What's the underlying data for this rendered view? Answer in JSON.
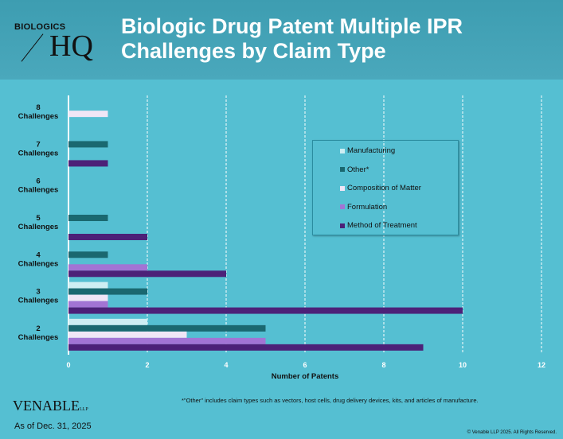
{
  "header": {
    "logo_small": "BIOLOGICS",
    "logo_big": "HQ",
    "title": "Biologic Drug Patent Multiple IPR Challenges by Claim Type"
  },
  "chart_data": {
    "type": "bar",
    "orientation": "horizontal",
    "title": "Biologic Drug Patent Multiple IPR Challenges by Claim Type",
    "xlabel": "Number of Patents",
    "ylabel": "",
    "xlim": [
      0,
      12
    ],
    "xticks": [
      0,
      2,
      4,
      6,
      8,
      10,
      12
    ],
    "grid": "vertical dashed",
    "legend_placement": "right",
    "categories": [
      {
        "num": "8",
        "label": "Challenges"
      },
      {
        "num": "7",
        "label": "Challenges"
      },
      {
        "num": "6",
        "label": "Challenges"
      },
      {
        "num": "5",
        "label": "Challenges"
      },
      {
        "num": "4",
        "label": "Challenges"
      },
      {
        "num": "3",
        "label": "Challenges"
      },
      {
        "num": "2",
        "label": "Challenges"
      }
    ],
    "series": [
      {
        "name": "Manufacturing",
        "color": "#cdeef3",
        "values": [
          0,
          0,
          0,
          0,
          0,
          1,
          2
        ]
      },
      {
        "name": "Other*",
        "color": "#1a6870",
        "values": [
          0,
          1,
          0,
          1,
          1,
          2,
          5
        ]
      },
      {
        "name": "Composition of Matter",
        "color": "#f0e6f6",
        "values": [
          1,
          0,
          0,
          0,
          0,
          1,
          3
        ]
      },
      {
        "name": "Formulation",
        "color": "#a274d4",
        "values": [
          0,
          0,
          0,
          0,
          2,
          1,
          5
        ]
      },
      {
        "name": "Method of Treatment",
        "color": "#4c2178",
        "values": [
          0,
          1,
          0,
          2,
          4,
          10,
          9
        ]
      }
    ]
  },
  "footer": {
    "note": "*\"Other\" includes claim types such as vectors, host cells, drug delivery devices, kits, and articles of manufacture.",
    "brand": "VENABLE",
    "brand_suffix": "LLP",
    "as_of": "As of Dec. 31, 2025",
    "copyright": "© Venable LLP 2025. All Rights Reserved."
  }
}
